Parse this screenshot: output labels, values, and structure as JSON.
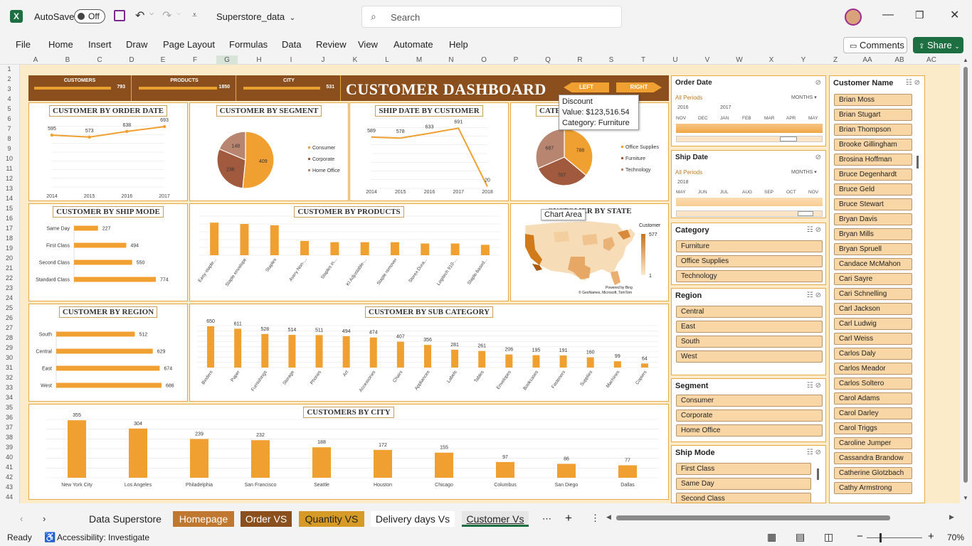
{
  "window": {
    "autosave_label": "AutoSave",
    "autosave_state": "Off",
    "file_name": "Superstore_data",
    "search_placeholder": "Search"
  },
  "menu": [
    "File",
    "Home",
    "Insert",
    "Draw",
    "Page Layout",
    "Formulas",
    "Data",
    "Review",
    "View",
    "Automate",
    "Help"
  ],
  "actions": {
    "comments": "Comments",
    "share": "Share"
  },
  "columns": [
    "A",
    "B",
    "C",
    "D",
    "E",
    "F",
    "G",
    "H",
    "I",
    "J",
    "K",
    "L",
    "M",
    "N",
    "O",
    "P",
    "Q",
    "R",
    "S",
    "T",
    "U",
    "V",
    "W",
    "X",
    "Y",
    "Z",
    "AA",
    "AB",
    "AC"
  ],
  "rows": [
    "1",
    "2",
    "3",
    "4",
    "5",
    "6",
    "7",
    "8",
    "9",
    "10",
    "11",
    "12",
    "13",
    "14",
    "15",
    "16",
    "17",
    "18",
    "19",
    "20",
    "21",
    "22",
    "23",
    "24",
    "25",
    "26",
    "27",
    "28",
    "29",
    "30",
    "31",
    "32",
    "33",
    "34",
    "35",
    "36",
    "37",
    "38",
    "39",
    "40",
    "41",
    "42",
    "43",
    "44"
  ],
  "kpis": [
    {
      "label": "CUSTOMERS",
      "value": "793"
    },
    {
      "label": "PRODUCTS",
      "value": "1850"
    },
    {
      "label": "CITY",
      "value": "531"
    }
  ],
  "dashboard": {
    "title": "CUSTOMER DASHBOARD",
    "left": "LEFT",
    "right": "RIGHT"
  },
  "tooltip": {
    "line1": "Discount",
    "line2": "Value:  $123,516.54",
    "line3": "Category: Furniture"
  },
  "chart_area_tip": "Chart Area",
  "map": {
    "title": "CUSTOMER BY STATE",
    "legend_title": "Customer",
    "legend_max": "577",
    "legend_min": "1",
    "credit1": "Powered by Bing",
    "credit2": "© GeoNames, Microsoft, TomTom"
  },
  "chart_data": [
    {
      "id": "order_date",
      "type": "line",
      "title": "CUSTOMER BY ORDER DATE",
      "x": [
        "2014",
        "2015",
        "2016",
        "2017"
      ],
      "values": [
        595,
        573,
        638,
        693
      ]
    },
    {
      "id": "segment",
      "type": "pie",
      "title": "CUSTOMER BY SEGMENT",
      "categories": [
        "Consumer",
        "Corporate",
        "Home Office"
      ],
      "values": [
        409,
        236,
        148
      ],
      "colors": [
        "#f0a030",
        "#a15a3e",
        "#b88670"
      ]
    },
    {
      "id": "ship_date",
      "type": "line",
      "title": "SHIP DATE BY CUSTOMER",
      "x": [
        "2014",
        "2015",
        "2016",
        "2017",
        "2018"
      ],
      "values": [
        589,
        578,
        633,
        691,
        20
      ]
    },
    {
      "id": "category",
      "type": "pie",
      "title": "CATE",
      "categories": [
        "Office Supplies",
        "Furniture",
        "Technology"
      ],
      "values": [
        788,
        707,
        687
      ],
      "colors": [
        "#f0a030",
        "#a15a3e",
        "#b88670"
      ]
    },
    {
      "id": "ship_mode",
      "type": "bar",
      "title": "CUSTOMER BY SHIP MODE",
      "categories": [
        "Same Day",
        "First Class",
        "Second Class",
        "Standard Class"
      ],
      "values": [
        227,
        494,
        550,
        774
      ]
    },
    {
      "id": "products",
      "type": "bar",
      "title": "CUSTOMER BY PRODUCTS",
      "categories": [
        "Easy-staple...",
        "Staple envelope",
        "Staples",
        "Avery Non-...",
        "Staples in...",
        "KI Adjustable-...",
        "Staple remover",
        "Storex Dura...",
        "Logitech 910-...",
        "Staple-based..."
      ],
      "values": [
        25,
        24,
        23,
        11,
        10,
        10,
        10,
        9,
        9,
        8
      ],
      "ylim": [
        0,
        30
      ]
    },
    {
      "id": "region",
      "type": "bar",
      "title": "CUSTOMER BY REGION",
      "categories": [
        "South",
        "Central",
        "East",
        "West"
      ],
      "values": [
        512,
        629,
        674,
        686
      ]
    },
    {
      "id": "sub_category",
      "type": "bar",
      "title": "CUSTOMER BY SUB CATEGORY",
      "categories": [
        "Binders",
        "Paper",
        "Furnishings",
        "Storage",
        "Phones",
        "Art",
        "Accessories",
        "Chairs",
        "Appliances",
        "Labels",
        "Tables",
        "Envelopes",
        "Bookcases",
        "Fasteners",
        "Supplies",
        "Machines",
        "Copiers"
      ],
      "values": [
        650,
        611,
        528,
        514,
        511,
        494,
        474,
        407,
        356,
        281,
        261,
        206,
        195,
        191,
        160,
        99,
        64
      ]
    },
    {
      "id": "city",
      "type": "bar",
      "title": "CUSTOMERS BY CITY",
      "categories": [
        "New York City",
        "Los Angeles",
        "Philadelphia",
        "San Francisco",
        "Seattle",
        "Houston",
        "Chicago",
        "Columbus",
        "San Diego",
        "Dallas"
      ],
      "values": [
        355,
        304,
        239,
        232,
        188,
        172,
        155,
        97,
        86,
        77
      ]
    }
  ],
  "slicers": {
    "order_date": {
      "title": "Order Date",
      "periods": "All Periods",
      "unit": "MONTHS",
      "years": [
        "2016",
        "2017"
      ],
      "months": [
        "NOV",
        "DEC",
        "JAN",
        "FEB",
        "MAR",
        "APR",
        "MAY"
      ]
    },
    "ship_date": {
      "title": "Ship Date",
      "periods": "All Periods",
      "unit": "MONTHS",
      "years": [
        "2018"
      ],
      "months": [
        "MAY",
        "JUN",
        "JUL",
        "AUG",
        "SEP",
        "OCT",
        "NOV"
      ]
    },
    "category": {
      "title": "Category",
      "items": [
        "Furniture",
        "Office Supplies",
        "Technology"
      ]
    },
    "region": {
      "title": "Region",
      "items": [
        "Central",
        "East",
        "South",
        "West"
      ]
    },
    "segment": {
      "title": "Segment",
      "items": [
        "Consumer",
        "Corporate",
        "Home Office"
      ]
    },
    "ship_mode": {
      "title": "Ship Mode",
      "items": [
        "First Class",
        "Same Day",
        "Second Class"
      ]
    },
    "customer": {
      "title": "Customer Name",
      "items": [
        "Brian Moss",
        "Brian Stugart",
        "Brian Thompson",
        "Brooke Gillingham",
        "Brosina Hoffman",
        "Bruce Degenhardt",
        "Bruce Geld",
        "Bruce Stewart",
        "Bryan Davis",
        "Bryan Mills",
        "Bryan Spruell",
        "Candace McMahon",
        "Cari Sayre",
        "Cari Schnelling",
        "Carl Jackson",
        "Carl Ludwig",
        "Carl Weiss",
        "Carlos Daly",
        "Carlos Meador",
        "Carlos Soltero",
        "Carol Adams",
        "Carol Darley",
        "Carol Triggs",
        "Caroline Jumper",
        "Cassandra Brandow",
        "Catherine Glotzbach",
        "Cathy Armstrong"
      ]
    }
  },
  "tabs": [
    "Data Superstore",
    "Homepage",
    "Order VS",
    "Quantity VS",
    "Delivery days Vs",
    "Customer Vs"
  ],
  "status": {
    "ready": "Ready",
    "accessibility": "Accessibility: Investigate",
    "zoom": "70%"
  }
}
